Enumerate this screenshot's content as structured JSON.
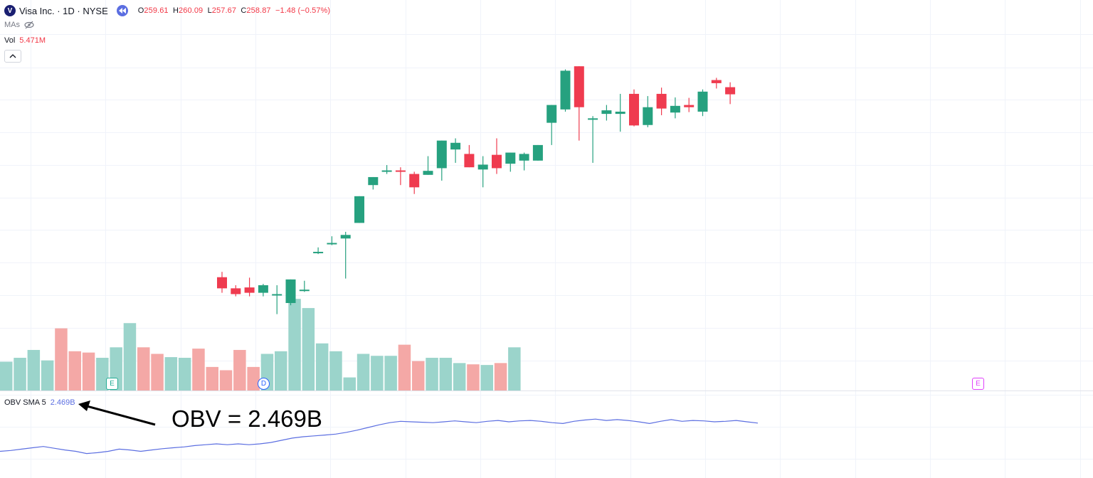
{
  "header": {
    "logo_letter": "V",
    "symbol": "Visa Inc. · 1D · NYSE",
    "open_label": "O",
    "open": "259.61",
    "high_label": "H",
    "high": "260.09",
    "low_label": "L",
    "low": "257.67",
    "close_label": "C",
    "close": "258.87",
    "change": "−1.48 (−0.57%)"
  },
  "mas_label": "MAs",
  "volume": {
    "label": "Vol",
    "value": "5.471M"
  },
  "obv": {
    "label": "OBV SMA 5",
    "value": "2.469B"
  },
  "annotation": "OBV = 2.469B",
  "events": {
    "earnings_1": "E",
    "dividend": "D",
    "earnings_2": "E"
  },
  "colors": {
    "up": "#26a17f",
    "down": "#ef3b4f",
    "vol_up": "#9bd4cb",
    "vol_down": "#f4a8a6",
    "obv_line": "#5b6ee1",
    "grid": "#f0f3fa"
  },
  "chart_data": {
    "type": "candlestick",
    "title": "Visa Inc. · 1D · NYSE",
    "price_range": [
      190,
      268
    ],
    "ohlc": [
      {
        "o": 215.3,
        "h": 216.5,
        "l": 211.8,
        "c": 212.8
      },
      {
        "o": 212.8,
        "h": 213.5,
        "l": 211.0,
        "c": 211.5
      },
      {
        "o": 213.0,
        "h": 215.2,
        "l": 211.0,
        "c": 211.8
      },
      {
        "o": 211.8,
        "h": 213.8,
        "l": 211.0,
        "c": 213.5
      },
      {
        "o": 211.5,
        "h": 213.5,
        "l": 207.0,
        "c": 211.5
      },
      {
        "o": 209.5,
        "h": 214.8,
        "l": 209.0,
        "c": 214.8
      },
      {
        "o": 212.5,
        "h": 214.5,
        "l": 212.0,
        "c": 212.5
      },
      {
        "o": 221.0,
        "h": 222.0,
        "l": 220.5,
        "c": 221.0
      },
      {
        "o": 223.0,
        "h": 224.5,
        "l": 222.5,
        "c": 223.0
      },
      {
        "o": 224.0,
        "h": 225.5,
        "l": 215.0,
        "c": 224.8
      },
      {
        "o": 227.5,
        "h": 233.5,
        "l": 227.5,
        "c": 233.5
      },
      {
        "o": 236.0,
        "h": 237.8,
        "l": 235.0,
        "c": 237.8
      },
      {
        "o": 239.0,
        "h": 240.5,
        "l": 238.5,
        "c": 239.3
      },
      {
        "o": 239.3,
        "h": 240.0,
        "l": 236.0,
        "c": 239.0
      },
      {
        "o": 238.5,
        "h": 239.0,
        "l": 234.0,
        "c": 235.5
      },
      {
        "o": 238.3,
        "h": 242.5,
        "l": 238.3,
        "c": 239.2
      },
      {
        "o": 239.8,
        "h": 246.0,
        "l": 237.0,
        "c": 246.0
      },
      {
        "o": 244.0,
        "h": 246.5,
        "l": 241.0,
        "c": 245.5
      },
      {
        "o": 243.0,
        "h": 245.0,
        "l": 240.0,
        "c": 240.0
      },
      {
        "o": 239.5,
        "h": 242.5,
        "l": 235.5,
        "c": 240.6
      },
      {
        "o": 242.8,
        "h": 246.5,
        "l": 238.5,
        "c": 239.8
      },
      {
        "o": 240.8,
        "h": 243.3,
        "l": 239.0,
        "c": 243.3
      },
      {
        "o": 241.5,
        "h": 243.3,
        "l": 239.3,
        "c": 243.0
      },
      {
        "o": 241.5,
        "h": 245.0,
        "l": 241.5,
        "c": 245.0
      },
      {
        "o": 250.0,
        "h": 254.0,
        "l": 245.0,
        "c": 254.0
      },
      {
        "o": 253.0,
        "h": 262.0,
        "l": 252.5,
        "c": 261.7
      },
      {
        "o": 262.7,
        "h": 262.7,
        "l": 246.0,
        "c": 253.5
      },
      {
        "o": 251.0,
        "h": 251.5,
        "l": 241.0,
        "c": 251.0
      },
      {
        "o": 252.0,
        "h": 254.0,
        "l": 250.5,
        "c": 252.8
      },
      {
        "o": 252.0,
        "h": 256.5,
        "l": 248.0,
        "c": 252.5
      },
      {
        "o": 256.5,
        "h": 257.5,
        "l": 249.2,
        "c": 249.4
      },
      {
        "o": 249.5,
        "h": 256.0,
        "l": 249.0,
        "c": 253.5
      },
      {
        "o": 256.5,
        "h": 257.9,
        "l": 251.7,
        "c": 253.2
      },
      {
        "o": 252.3,
        "h": 255.7,
        "l": 251.0,
        "c": 253.8
      },
      {
        "o": 254.0,
        "h": 255.6,
        "l": 252.4,
        "c": 253.5
      },
      {
        "o": 252.5,
        "h": 257.5,
        "l": 251.5,
        "c": 257.0
      },
      {
        "o": 259.6,
        "h": 260.1,
        "l": 257.7,
        "c": 258.9
      },
      {
        "o": 258.0,
        "h": 259.1,
        "l": 254.2,
        "c": 256.4
      }
    ],
    "volume_rel": [
      0.44,
      0.5,
      0.62,
      0.46,
      0.95,
      0.6,
      0.58,
      0.5,
      0.66,
      1.03,
      0.66,
      0.56,
      0.51,
      0.5,
      0.64,
      0.36,
      0.31,
      0.62,
      0.36,
      0.56,
      0.6,
      1.4,
      1.26,
      0.72,
      0.6,
      0.2,
      0.56,
      0.53,
      0.53,
      0.7,
      0.45,
      0.5,
      0.5,
      0.42,
      0.4,
      0.39,
      0.42,
      0.66
    ],
    "obv_line": [
      0.25,
      0.27,
      0.3,
      0.33,
      0.36,
      0.32,
      0.28,
      0.25,
      0.2,
      0.22,
      0.25,
      0.3,
      0.28,
      0.25,
      0.28,
      0.31,
      0.33,
      0.35,
      0.38,
      0.4,
      0.42,
      0.4,
      0.42,
      0.4,
      0.42,
      0.45,
      0.5,
      0.55,
      0.58,
      0.6,
      0.62,
      0.64,
      0.68,
      0.73,
      0.79,
      0.85,
      0.9,
      0.93,
      0.92,
      0.91,
      0.9,
      0.92,
      0.94,
      0.92,
      0.9,
      0.93,
      0.95,
      0.92,
      0.94,
      0.95,
      0.93,
      0.9,
      0.88,
      0.93,
      0.96,
      0.98,
      0.95,
      0.97,
      0.95,
      0.92,
      0.88,
      0.93,
      0.97,
      0.93,
      0.95,
      0.94,
      0.92,
      0.93,
      0.95,
      0.92,
      0.89
    ]
  }
}
